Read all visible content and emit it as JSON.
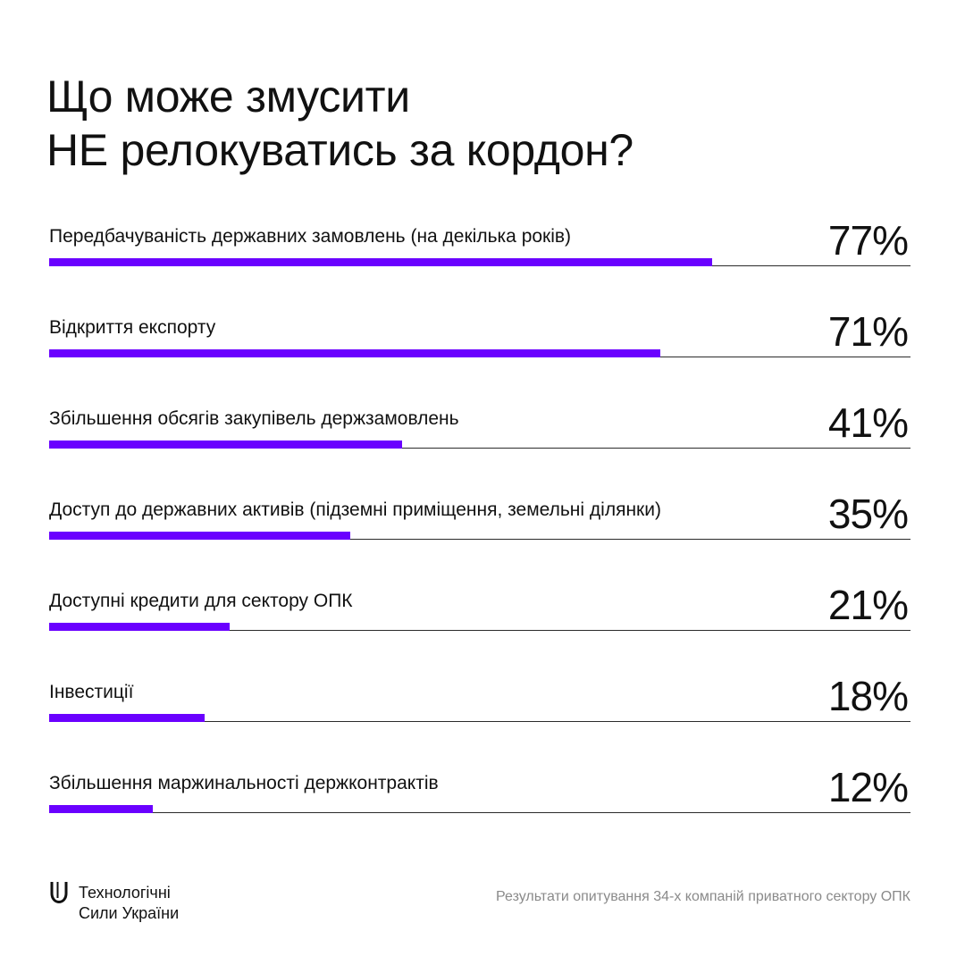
{
  "title": {
    "line1": "Що може змусити",
    "line2": "НЕ релокуватись за кордон?"
  },
  "colors": {
    "bar": "#6a00ff",
    "text": "#111111",
    "muted": "#8a8a8a",
    "background": "#ffffff"
  },
  "chart_data": {
    "type": "bar",
    "orientation": "horizontal",
    "categories": [
      "Передбачуваність державних замовлень (на декілька років)",
      "Відкриття експорту",
      "Збільшення обсягів закупівель держзамовлень",
      "Доступ до державних активів (підземні приміщення, земельні ділянки)",
      "Доступні кредити для сектору ОПК",
      "Інвестиції",
      "Збільшення маржинальності держконтрактів"
    ],
    "values": [
      77,
      71,
      41,
      35,
      21,
      18,
      12
    ],
    "value_labels": [
      "77%",
      "71%",
      "41%",
      "35%",
      "21%",
      "18%",
      "12%"
    ],
    "xlim": [
      0,
      100
    ],
    "grid": false,
    "legend": "none"
  },
  "footer": {
    "logo_line1": "Технологічні",
    "logo_line2": "Сили України",
    "logo_icon": "u-logo-icon",
    "source": "Результати опитування 34-х компаній приватного сектору ОПК"
  }
}
